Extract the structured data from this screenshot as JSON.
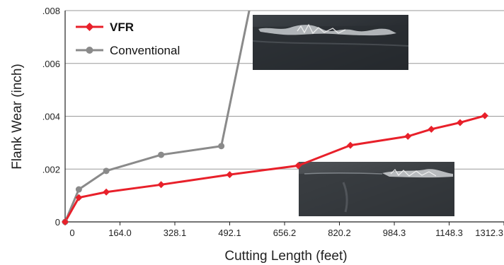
{
  "colors": {
    "vfr": "#e8202a",
    "conventional": "#8a8a8a",
    "grid": "#9a9a9a",
    "axis": "#222222"
  },
  "chart_data": {
    "type": "line",
    "xlabel": "Cutting Length (feet)",
    "ylabel": "Flank Wear (inch)",
    "xlim": [
      0,
      1312.3
    ],
    "ylim": [
      0,
      0.008
    ],
    "x_ticks": [
      0,
      164.0,
      328.1,
      492.1,
      656.2,
      820.2,
      984.3,
      1148.3,
      1312.3
    ],
    "x_tick_labels": [
      "0",
      "164.0",
      "328.1",
      "492.1",
      "656.2",
      "820.2",
      "984.3",
      "1148.3",
      "1312.3"
    ],
    "y_ticks": [
      0,
      0.002,
      0.004,
      0.006,
      0.008
    ],
    "y_tick_labels": [
      "0",
      ".002",
      ".004",
      ".006",
      ".008"
    ],
    "grid": "horizontal",
    "legend_position": "top-left",
    "series": [
      {
        "name": "VFR",
        "color": "#e8202a",
        "marker": "diamond",
        "bold_label": true,
        "points": [
          [
            0,
            0
          ],
          [
            41,
            0.00092
          ],
          [
            123,
            0.00113
          ],
          [
            287,
            0.00141
          ],
          [
            492,
            0.00179
          ],
          [
            697,
            0.00213
          ],
          [
            853,
            0.0029
          ],
          [
            1025,
            0.00324
          ],
          [
            1095,
            0.00351
          ],
          [
            1181,
            0.00376
          ],
          [
            1255,
            0.00402
          ]
        ]
      },
      {
        "name": "Conventional",
        "color": "#8a8a8a",
        "marker": "circle",
        "bold_label": false,
        "points": [
          [
            0,
            0
          ],
          [
            41,
            0.00123
          ],
          [
            123,
            0.00193
          ],
          [
            287,
            0.00254
          ],
          [
            467,
            0.00287
          ],
          [
            557,
            0.0084
          ]
        ]
      }
    ],
    "images": [
      {
        "name": "wear-photo-conventional"
      },
      {
        "name": "wear-photo-vfr"
      }
    ]
  }
}
